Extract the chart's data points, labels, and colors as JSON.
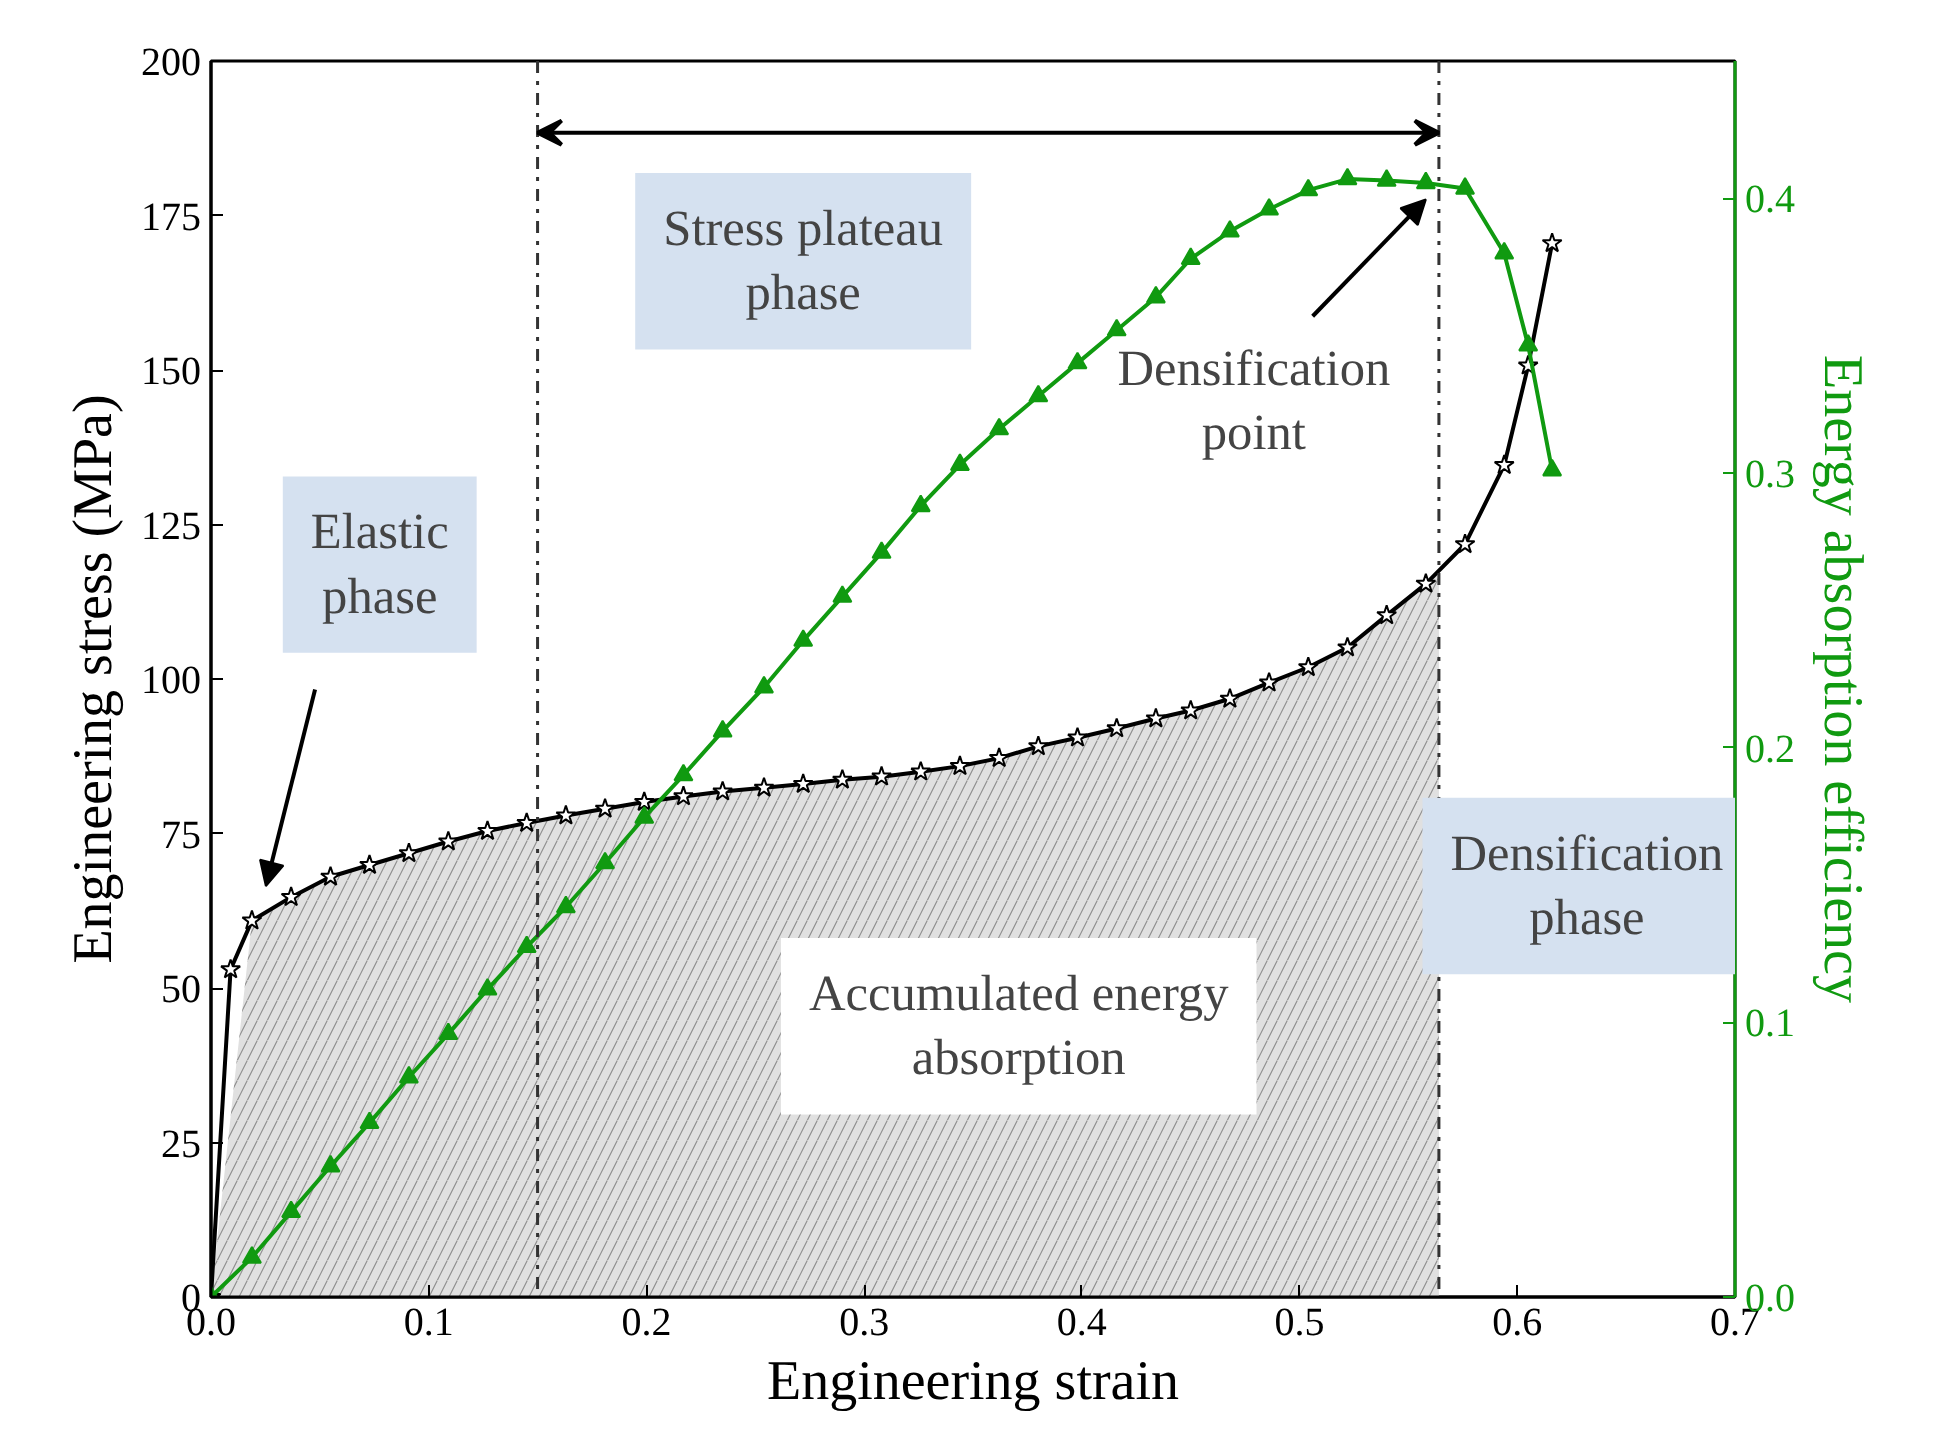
{
  "chart_data": {
    "type": "line",
    "xlabel": "Engineering strain",
    "ylabel": "Engineering stress (MPa)",
    "y2label": "Energy absorption efficiency",
    "xlim": [
      0,
      0.7
    ],
    "xticks": [
      {
        "value": 0,
        "label": "0.0"
      },
      0.1,
      0.2,
      0.3,
      0.4,
      0.5,
      0.6,
      0.7
    ],
    "ylim": [
      0,
      200
    ],
    "yticks": [
      0,
      25,
      50,
      75,
      100,
      125,
      150,
      175,
      200
    ],
    "y2lim": [
      0,
      0.45
    ],
    "y2ticks": [
      {
        "value": 0,
        "label": "0.0"
      },
      0.1,
      0.2,
      0.3,
      0.4
    ],
    "grid": false,
    "line_style": "solid",
    "series": [
      {
        "type": "area",
        "color": "#e0e0e0",
        "x": [
          0,
          0.0188,
          0.0368,
          0.0549,
          0.0728,
          0.0909,
          0.109,
          0.127,
          0.145,
          0.163,
          0.181,
          0.199,
          0.217,
          0.235,
          0.254,
          0.272,
          0.29,
          0.308,
          0.326,
          0.344,
          0.362,
          0.38,
          0.398,
          0.416,
          0.434,
          0.45,
          0.468,
          0.486,
          0.504,
          0.522,
          0.54,
          0.558,
          0.564
        ],
        "values": [
          0,
          60.9,
          64.7,
          68.0,
          69.9,
          71.8,
          73.7,
          75.4,
          76.7,
          77.9,
          79.0,
          80.1,
          81.0,
          81.8,
          82.4,
          83.0,
          83.7,
          84.2,
          85.0,
          85.9,
          87.2,
          89.1,
          90.5,
          92.0,
          93.6,
          94.9,
          96.8,
          99.4,
          101.9,
          105.1,
          110.3,
          115.4,
          117.0
        ]
      },
      {
        "color": "#000000",
        "marker": "star",
        "x": [
          0,
          0.009,
          0.0188,
          0.0368,
          0.0549,
          0.0728,
          0.0909,
          0.109,
          0.127,
          0.145,
          0.163,
          0.181,
          0.199,
          0.217,
          0.235,
          0.254,
          0.272,
          0.29,
          0.308,
          0.326,
          0.344,
          0.362,
          0.38,
          0.398,
          0.416,
          0.434,
          0.45,
          0.468,
          0.486,
          0.504,
          0.522,
          0.54,
          0.558,
          0.576,
          0.594,
          0.605,
          0.616
        ],
        "values": [
          0,
          53,
          60.9,
          64.7,
          68.0,
          69.9,
          71.8,
          73.7,
          75.4,
          76.7,
          77.9,
          79.0,
          80.1,
          81.0,
          81.8,
          82.4,
          83.0,
          83.7,
          84.2,
          85.0,
          85.9,
          87.2,
          89.1,
          90.5,
          92.0,
          93.6,
          94.9,
          96.8,
          99.4,
          101.9,
          105.1,
          110.3,
          115.4,
          121.8,
          134.6,
          150.7,
          170.5
        ]
      },
      {
        "color": "#109a10",
        "marker": "triangle",
        "axis": "y2",
        "x": [
          0,
          0.0188,
          0.0368,
          0.0549,
          0.0728,
          0.0909,
          0.109,
          0.127,
          0.145,
          0.163,
          0.181,
          0.199,
          0.217,
          0.235,
          0.254,
          0.272,
          0.29,
          0.308,
          0.326,
          0.344,
          0.362,
          0.38,
          0.398,
          0.416,
          0.434,
          0.45,
          0.468,
          0.486,
          0.504,
          0.522,
          0.54,
          0.558,
          0.576,
          0.594,
          0.605,
          0.616
        ],
        "values": [
          0,
          0.0144,
          0.031,
          0.0476,
          0.0634,
          0.08,
          0.0958,
          0.112,
          0.1275,
          0.142,
          0.158,
          0.1746,
          0.19,
          0.206,
          0.222,
          0.239,
          0.255,
          0.271,
          0.288,
          0.303,
          0.316,
          0.328,
          0.34,
          0.352,
          0.364,
          0.378,
          0.388,
          0.396,
          0.403,
          0.407,
          0.4065,
          0.4056,
          0.4036,
          0.38,
          0.3465,
          0.301
        ]
      }
    ],
    "ref_lines": [
      {
        "axis": "x",
        "value": 0.15,
        "line_style": "dashdot",
        "color": "#333333"
      },
      {
        "axis": "x",
        "value": 0.564,
        "line_style": "dashdot",
        "color": "#333333"
      }
    ],
    "annotations": [
      "Elastic phase",
      "Stress plateau phase",
      "Densification point",
      "Densification phase",
      "Accumulated energy absorption"
    ]
  }
}
